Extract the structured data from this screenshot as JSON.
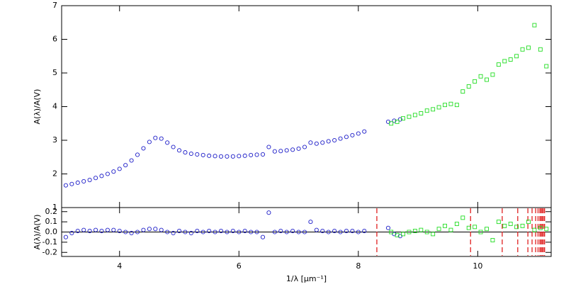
{
  "chart_data": [
    {
      "type": "scatter",
      "ylabel": "A(λ)/A(V)",
      "xlim": [
        3.03,
        11.23
      ],
      "ylim": [
        1,
        7
      ],
      "yticks": [
        1,
        2,
        3,
        4,
        5,
        6,
        7
      ],
      "series": [
        {
          "color": "#1c1cc8",
          "marker": "circle",
          "x": [
            3.1,
            3.2,
            3.3,
            3.4,
            3.5,
            3.6,
            3.7,
            3.8,
            3.9,
            4.0,
            4.1,
            4.2,
            4.3,
            4.4,
            4.5,
            4.6,
            4.7,
            4.8,
            4.9,
            5.0,
            5.1,
            5.2,
            5.3,
            5.4,
            5.5,
            5.6,
            5.7,
            5.8,
            5.9,
            6.0,
            6.1,
            6.2,
            6.3,
            6.4,
            6.5,
            6.6,
            6.7,
            6.8,
            6.9,
            7.0,
            7.1,
            7.2,
            7.3,
            7.4,
            7.5,
            7.6,
            7.7,
            7.8,
            7.9,
            8.0,
            8.1,
            8.5,
            8.6,
            8.7
          ],
          "values": [
            1.66,
            1.7,
            1.74,
            1.78,
            1.82,
            1.88,
            1.94,
            2.0,
            2.07,
            2.15,
            2.26,
            2.4,
            2.57,
            2.76,
            2.95,
            3.07,
            3.05,
            2.93,
            2.8,
            2.7,
            2.64,
            2.6,
            2.58,
            2.56,
            2.54,
            2.53,
            2.52,
            2.52,
            2.52,
            2.53,
            2.54,
            2.56,
            2.57,
            2.58,
            2.8,
            2.67,
            2.68,
            2.7,
            2.72,
            2.75,
            2.8,
            2.93,
            2.9,
            2.93,
            2.97,
            3.0,
            3.05,
            3.1,
            3.15,
            3.2,
            3.26,
            3.55,
            3.58,
            3.62
          ]
        },
        {
          "color": "#22dd22",
          "marker": "square",
          "x": [
            8.55,
            8.65,
            8.75,
            8.85,
            8.95,
            9.05,
            9.15,
            9.25,
            9.35,
            9.45,
            9.55,
            9.65,
            9.75,
            9.85,
            9.95,
            10.05,
            10.15,
            10.25,
            10.35,
            10.45,
            10.55,
            10.65,
            10.75,
            10.85,
            10.95,
            11.05,
            11.15
          ],
          "values": [
            3.5,
            3.55,
            3.65,
            3.7,
            3.75,
            3.8,
            3.88,
            3.92,
            3.98,
            4.05,
            4.08,
            4.05,
            4.45,
            4.6,
            4.75,
            4.9,
            4.8,
            4.95,
            5.25,
            5.35,
            5.4,
            5.5,
            5.7,
            5.75,
            6.42,
            5.7,
            5.2
          ]
        }
      ]
    },
    {
      "type": "scatter",
      "ylabel": "A(λ)/A(V)",
      "xlabel": "1/λ [μm⁻¹]",
      "xlim": [
        3.03,
        11.23
      ],
      "xticks": [
        4,
        6,
        8,
        10
      ],
      "ylim": [
        -0.24,
        0.24
      ],
      "yticks": [
        -0.2,
        -0.1,
        {
          "value": 0,
          "label": "0.0"
        },
        0.1,
        0.2
      ],
      "hline": 0,
      "vlines": [
        8.31,
        9.88,
        10.41,
        10.67,
        10.84,
        10.91,
        10.97,
        11.01,
        11.04,
        11.06,
        11.08,
        11.1,
        11.12
      ],
      "vline_color": "#e02020",
      "series": [
        {
          "color": "#1c1cc8",
          "marker": "circle",
          "x": [
            3.1,
            3.2,
            3.3,
            3.4,
            3.5,
            3.6,
            3.7,
            3.8,
            3.9,
            4.0,
            4.1,
            4.2,
            4.3,
            4.4,
            4.5,
            4.6,
            4.7,
            4.8,
            4.9,
            5.0,
            5.1,
            5.2,
            5.3,
            5.4,
            5.5,
            5.6,
            5.7,
            5.8,
            5.9,
            6.0,
            6.1,
            6.2,
            6.3,
            6.4,
            6.5,
            6.6,
            6.7,
            6.8,
            6.9,
            7.0,
            7.1,
            7.2,
            7.3,
            7.4,
            7.5,
            7.6,
            7.7,
            7.8,
            7.9,
            8.0,
            8.1,
            8.5,
            8.6,
            8.7
          ],
          "values": [
            -0.05,
            -0.01,
            0.01,
            0.02,
            0.01,
            0.02,
            0.01,
            0.02,
            0.02,
            0.01,
            0.0,
            -0.01,
            0.0,
            0.02,
            0.03,
            0.03,
            0.02,
            0.0,
            -0.01,
            0.01,
            0.0,
            -0.01,
            0.01,
            0.0,
            0.01,
            0.0,
            0.01,
            0.0,
            0.01,
            0.0,
            0.01,
            0.0,
            0.0,
            -0.05,
            0.19,
            0.0,
            0.01,
            0.0,
            0.01,
            0.0,
            0.0,
            0.1,
            0.02,
            0.01,
            0.0,
            0.01,
            0.0,
            0.01,
            0.01,
            0.0,
            0.01,
            0.04,
            -0.02,
            -0.04
          ]
        },
        {
          "color": "#22dd22",
          "marker": "square",
          "x": [
            8.55,
            8.65,
            8.75,
            8.85,
            8.95,
            9.05,
            9.15,
            9.25,
            9.35,
            9.45,
            9.55,
            9.65,
            9.75,
            9.85,
            9.95,
            10.05,
            10.15,
            10.25,
            10.35,
            10.45,
            10.55,
            10.65,
            10.75,
            10.85,
            10.95,
            11.05,
            11.15
          ],
          "values": [
            0.0,
            -0.03,
            -0.02,
            0.0,
            0.01,
            0.02,
            0.0,
            -0.02,
            0.03,
            0.06,
            0.02,
            0.08,
            0.14,
            0.04,
            0.05,
            0.0,
            0.03,
            -0.08,
            0.1,
            0.06,
            0.08,
            0.05,
            0.06,
            0.1,
            0.02,
            0.04,
            0.03
          ]
        }
      ]
    }
  ]
}
